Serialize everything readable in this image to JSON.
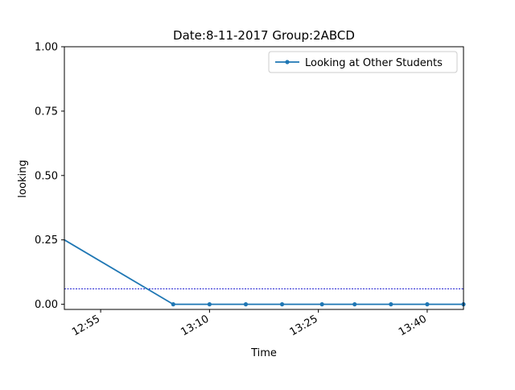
{
  "chart_data": {
    "type": "line",
    "title": "Date:8-11-2017  Group:2ABCD",
    "xlabel": "Time",
    "ylabel": "looking",
    "x_unit": "time (HH:MM)",
    "xlim": [
      "12:50",
      "13:45"
    ],
    "ylim": [
      -0.02,
      1.0
    ],
    "x_ticks": [
      "12:55",
      "13:10",
      "13:25",
      "13:40"
    ],
    "y_ticks": [
      "0.00",
      "0.25",
      "0.50",
      "0.75",
      "1.00"
    ],
    "grid": false,
    "legend_position": "top-right",
    "series": [
      {
        "name": "Looking at Other Students",
        "color": "#1f77b4",
        "marker": "circle",
        "points": [
          {
            "x": "12:50",
            "y": 0.25
          },
          {
            "x": "13:05",
            "y": 0.0
          },
          {
            "x": "13:10",
            "y": 0.0
          },
          {
            "x": "13:15",
            "y": 0.0
          },
          {
            "x": "13:20",
            "y": 0.0
          },
          {
            "x": "13:25.5",
            "y": 0.0
          },
          {
            "x": "13:30",
            "y": 0.0
          },
          {
            "x": "13:35",
            "y": 0.0
          },
          {
            "x": "13:40",
            "y": 0.0
          },
          {
            "x": "13:45",
            "y": 0.0
          }
        ]
      }
    ],
    "reference_line": {
      "y": 0.06,
      "color": "#0000cc",
      "style": "dotted"
    }
  }
}
